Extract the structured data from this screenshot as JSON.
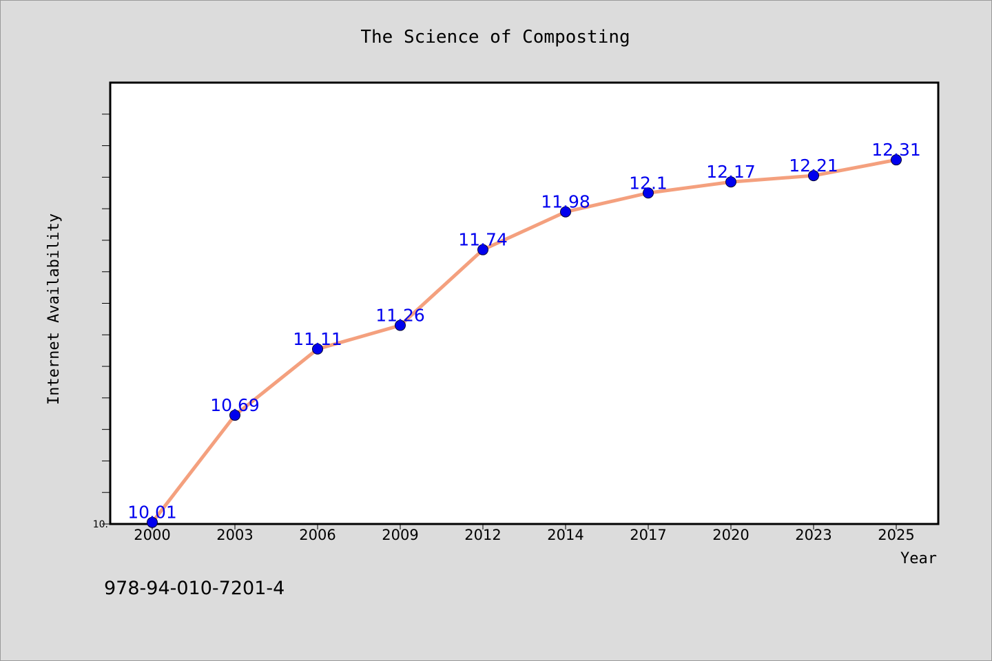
{
  "chart_data": {
    "type": "line",
    "title": "The Science of Composting",
    "xlabel": "Year",
    "ylabel": "Internet Availability",
    "categories": [
      "2000",
      "2003",
      "2006",
      "2009",
      "2012",
      "2014",
      "2017",
      "2020",
      "2023",
      "2025"
    ],
    "series": [
      {
        "values": [
          10.01,
          10.69,
          11.11,
          11.26,
          11.74,
          11.98,
          12.1,
          12.17,
          12.21,
          12.31
        ],
        "data_labels": [
          "10.01",
          "10.69",
          "11.11",
          "11.26",
          "11.74",
          "11.98",
          "12.1",
          "12.17",
          "12.21",
          "12.31"
        ]
      }
    ],
    "ylim": [
      10.0,
      12.8
    ],
    "y_tick_labels": [
      {
        "value": 10.0,
        "text": "10."
      }
    ],
    "grid": false,
    "legend": "none",
    "colors": {
      "line": "#f4a07e",
      "marker": "#0000ee",
      "data_label": "#0000ee",
      "plot_background": "#ffffff",
      "page_background": "#dcdcdc"
    }
  },
  "footer": {
    "code": "978-94-010-7201-4"
  }
}
